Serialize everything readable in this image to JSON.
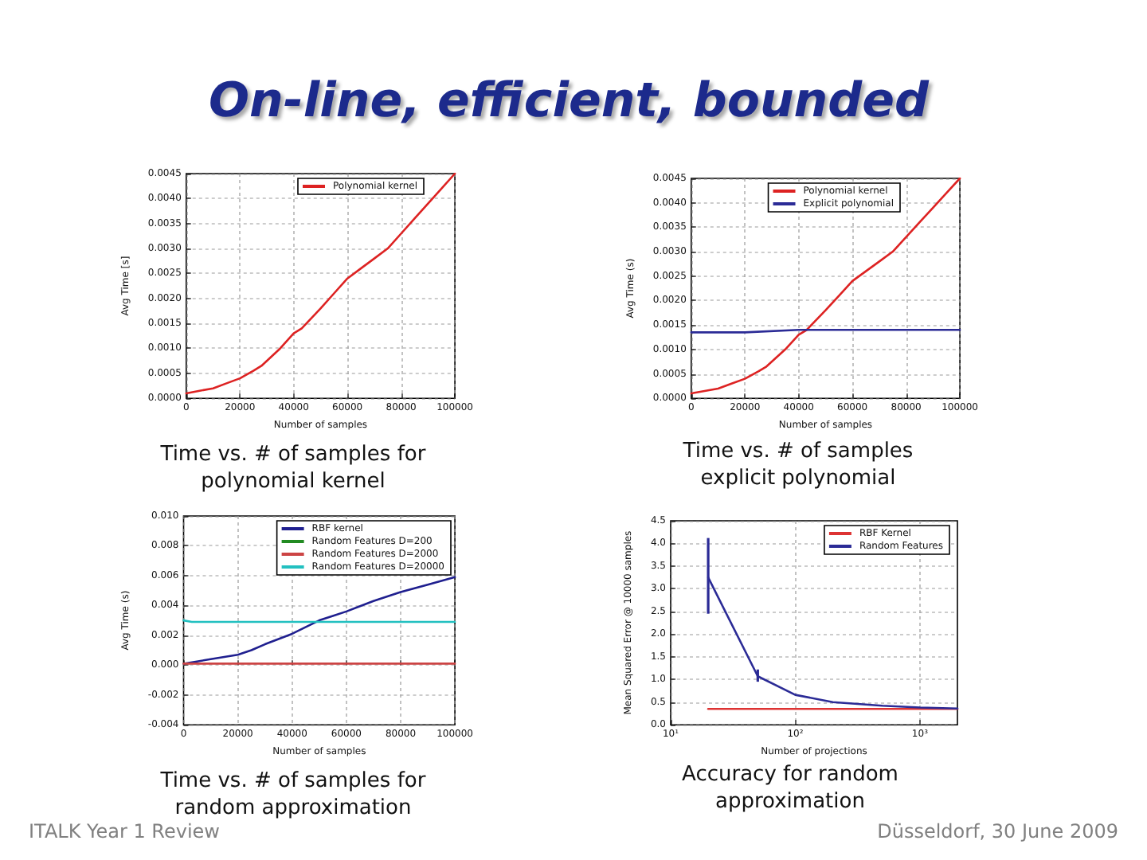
{
  "chart_data": [
    {
      "type": "other",
      "title": "On-line, efficient, bounded",
      "annotations": [
        "ITALK Year 1 Review",
        "Düsseldorf, 30 June 2009"
      ]
    },
    {
      "type": "line",
      "title": "Time vs. # of samples for polynomial kernel",
      "xlabel": "Number of samples",
      "ylabel": "Avg Time [s]",
      "xlim": [
        0,
        100000
      ],
      "xticks": [
        0,
        20000,
        40000,
        60000,
        80000,
        100000
      ],
      "ylim": [
        0,
        0.0045
      ],
      "yticks": [
        {
          "value": 0,
          "label": "0.0000"
        },
        {
          "value": 0.0005,
          "label": "0.0005"
        },
        {
          "value": 0.001,
          "label": "0.0010"
        },
        {
          "value": 0.0015,
          "label": "0.0015"
        },
        {
          "value": 0.002,
          "label": "0.0020"
        },
        {
          "value": 0.0025,
          "label": "0.0025"
        },
        {
          "value": 0.003,
          "label": "0.0030"
        },
        {
          "value": 0.0035,
          "label": "0.0035"
        },
        {
          "value": 0.004,
          "label": "0.0040"
        },
        {
          "value": 0.0045,
          "label": "0.0045"
        }
      ],
      "grid": true,
      "legend": "top right",
      "series": [
        {
          "name": "Polynomial kernel",
          "color": "#dd2222",
          "x": [
            0,
            5000,
            10000,
            15000,
            20000,
            25000,
            28000,
            35000,
            40000,
            43000,
            50000,
            55000,
            60000,
            65000,
            70000,
            75000,
            80000,
            85000,
            90000,
            95000,
            100000
          ],
          "values": [
            0.0001,
            0.00015,
            0.0002,
            0.0003,
            0.0004,
            0.00055,
            0.00065,
            0.001,
            0.0013,
            0.0014,
            0.0018,
            0.0021,
            0.0024,
            0.0026,
            0.0028,
            0.003,
            0.0033,
            0.0036,
            0.0039,
            0.0042,
            0.0045
          ]
        }
      ]
    },
    {
      "type": "line",
      "title": "Time vs. # of samples explicit polynomial",
      "xlabel": "Number of samples",
      "ylabel": "Avg Time (s)",
      "xlim": [
        0,
        100000
      ],
      "xticks": [
        0,
        20000,
        40000,
        60000,
        80000,
        100000
      ],
      "ylim": [
        0,
        0.0045
      ],
      "yticks": [
        {
          "value": 0,
          "label": "0.0000"
        },
        {
          "value": 0.0005,
          "label": "0.0005"
        },
        {
          "value": 0.001,
          "label": "0.0010"
        },
        {
          "value": 0.0015,
          "label": "0.0015"
        },
        {
          "value": 0.002,
          "label": "0.0020"
        },
        {
          "value": 0.0025,
          "label": "0.0025"
        },
        {
          "value": 0.003,
          "label": "0.0030"
        },
        {
          "value": 0.0035,
          "label": "0.0035"
        },
        {
          "value": 0.004,
          "label": "0.0040"
        },
        {
          "value": 0.0045,
          "label": "0.0045"
        }
      ],
      "grid": true,
      "legend": "top right",
      "series": [
        {
          "name": "Polynomial kernel",
          "color": "#dd2222",
          "x": [
            0,
            5000,
            10000,
            15000,
            20000,
            25000,
            28000,
            35000,
            40000,
            43000,
            50000,
            55000,
            60000,
            65000,
            70000,
            75000,
            80000,
            85000,
            90000,
            95000,
            100000
          ],
          "values": [
            0.0001,
            0.00015,
            0.0002,
            0.0003,
            0.0004,
            0.00055,
            0.00065,
            0.001,
            0.0013,
            0.0014,
            0.0018,
            0.0021,
            0.0024,
            0.0026,
            0.0028,
            0.003,
            0.0033,
            0.0036,
            0.0039,
            0.0042,
            0.0045
          ]
        },
        {
          "name": "Explicit polynomial",
          "color": "#2b2b96",
          "x": [
            0,
            20000,
            40000,
            60000,
            80000,
            100000
          ],
          "values": [
            0.00135,
            0.00135,
            0.0014,
            0.0014,
            0.0014,
            0.0014
          ]
        }
      ]
    },
    {
      "type": "line",
      "title": "Time vs. # of samples for random approximation",
      "xlabel": "Number of samples",
      "ylabel": "Avg Time (s)",
      "xlim": [
        0,
        100000
      ],
      "xticks": [
        0,
        20000,
        40000,
        60000,
        80000,
        100000
      ],
      "ylim": [
        -0.004,
        0.01
      ],
      "yticks": [
        {
          "value": -0.004,
          "label": "-0.004"
        },
        {
          "value": -0.002,
          "label": "-0.002"
        },
        {
          "value": 0,
          "label": "0.000"
        },
        {
          "value": 0.002,
          "label": "0.002"
        },
        {
          "value": 0.004,
          "label": "0.004"
        },
        {
          "value": 0.006,
          "label": "0.006"
        },
        {
          "value": 0.008,
          "label": "0.008"
        },
        {
          "value": 0.01,
          "label": "0.010"
        }
      ],
      "grid": true,
      "legend": "top right",
      "series": [
        {
          "name": "RBF kernel",
          "color": "#1f1f8f",
          "x": [
            0,
            10000,
            20000,
            25000,
            30000,
            40000,
            50000,
            55000,
            60000,
            70000,
            80000,
            90000,
            100000
          ],
          "values": [
            0.0001,
            0.0004,
            0.0007,
            0.001,
            0.0014,
            0.0021,
            0.003,
            0.0033,
            0.0036,
            0.0043,
            0.0049,
            0.0054,
            0.0059
          ]
        },
        {
          "name": "Random Features D=200",
          "color": "#228b22"
        },
        {
          "name": "Random Features D=2000",
          "color": "#cc4444",
          "x": [
            0,
            100000
          ],
          "values": [
            0.0001,
            0.0001
          ]
        },
        {
          "name": "Random Features D=20000",
          "color": "#22c0c0",
          "x": [
            0,
            3000,
            100000
          ],
          "values": [
            0.003,
            0.0029,
            0.0029
          ]
        }
      ]
    },
    {
      "type": "line",
      "title": "Accuracy for random approximation",
      "xlabel": "Number of projections",
      "ylabel": "Mean Squared Error @ 10000 samples",
      "log": "x",
      "xlim": [
        10,
        2000
      ],
      "xticks": [
        {
          "value": 10,
          "label": "10¹"
        },
        {
          "value": 100,
          "label": "10²"
        },
        {
          "value": 1000,
          "label": "10³"
        }
      ],
      "ylim": [
        0,
        4.5
      ],
      "yticks": [
        {
          "value": 0,
          "label": "0.0"
        },
        0.5,
        {
          "value": 1,
          "label": "1.0"
        },
        1.5,
        {
          "value": 2,
          "label": "2.0"
        },
        2.5,
        {
          "value": 3,
          "label": "3.0"
        },
        3.5,
        {
          "value": 4,
          "label": "4.0"
        },
        4.5
      ],
      "grid": true,
      "legend": "top right",
      "series": [
        {
          "name": "RBF Kernel",
          "color": "#dd3333",
          "x": [
            20,
            2000
          ],
          "values": [
            0.35,
            0.35
          ]
        },
        {
          "name": "Random Features",
          "color": "#2b2b96",
          "x": [
            20,
            50,
            100,
            200,
            500,
            1000,
            2000
          ],
          "values": [
            3.25,
            1.07,
            0.66,
            0.5,
            0.42,
            0.38,
            0.36
          ],
          "errors": [
            [
              2.45,
              4.12
            ],
            [
              0.95,
              1.22
            ],
            null,
            null,
            null,
            null,
            null
          ]
        }
      ]
    }
  ]
}
